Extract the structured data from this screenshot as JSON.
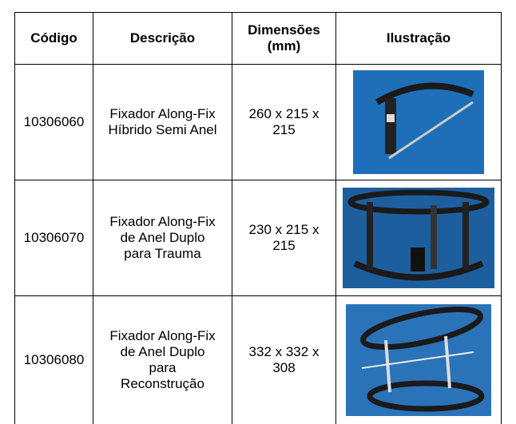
{
  "table": {
    "header": [
      "Código",
      "Descrição",
      [
        "Dimensões",
        "(mm)"
      ],
      "Ilustração"
    ],
    "rows": [
      {
        "code": "10306060",
        "description": [
          "Fixador Along-Fix",
          "Híbrido Semi Anel"
        ],
        "dimensions": [
          "260 x 215 x",
          "215"
        ]
      },
      {
        "code": "10306070",
        "description": [
          "Fixador Along-Fix",
          "de Anel Duplo",
          "para Trauma"
        ],
        "dimensions": [
          "230 x 215 x",
          "215"
        ]
      },
      {
        "code": "10306080",
        "description": [
          "Fixador Along-Fix",
          "de Anel Duplo",
          "para",
          "Reconstrução"
        ],
        "dimensions": [
          "332 x 332 x",
          "308"
        ]
      }
    ]
  }
}
